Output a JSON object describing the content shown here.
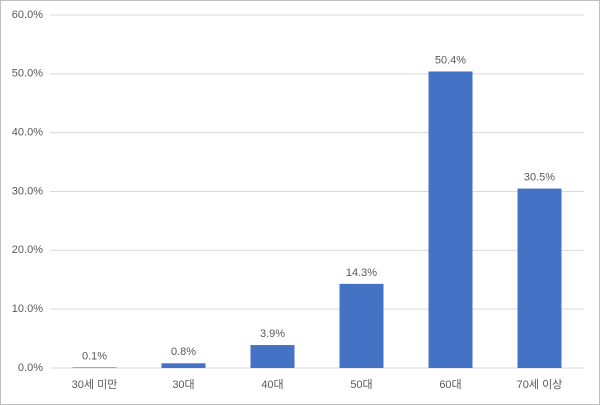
{
  "chart_data": {
    "type": "bar",
    "categories": [
      "30세 미만",
      "30대",
      "40대",
      "50대",
      "60대",
      "70세 이상"
    ],
    "values": [
      0.1,
      0.8,
      3.9,
      14.3,
      50.4,
      30.5
    ],
    "value_labels": [
      "0.1%",
      "0.8%",
      "3.9%",
      "14.3%",
      "50.4%",
      "30.5%"
    ],
    "color": "#4472c4",
    "ylim": [
      0,
      60
    ],
    "yticks": [
      {
        "value": 0,
        "label": "0.0%"
      },
      {
        "value": 10,
        "label": "10.0%"
      },
      {
        "value": 20,
        "label": "20.0%"
      },
      {
        "value": 30,
        "label": "30.0%"
      },
      {
        "value": 40,
        "label": "40.0%"
      },
      {
        "value": 50,
        "label": "50.0%"
      },
      {
        "value": 60,
        "label": "60.0%"
      }
    ],
    "grid": true
  }
}
